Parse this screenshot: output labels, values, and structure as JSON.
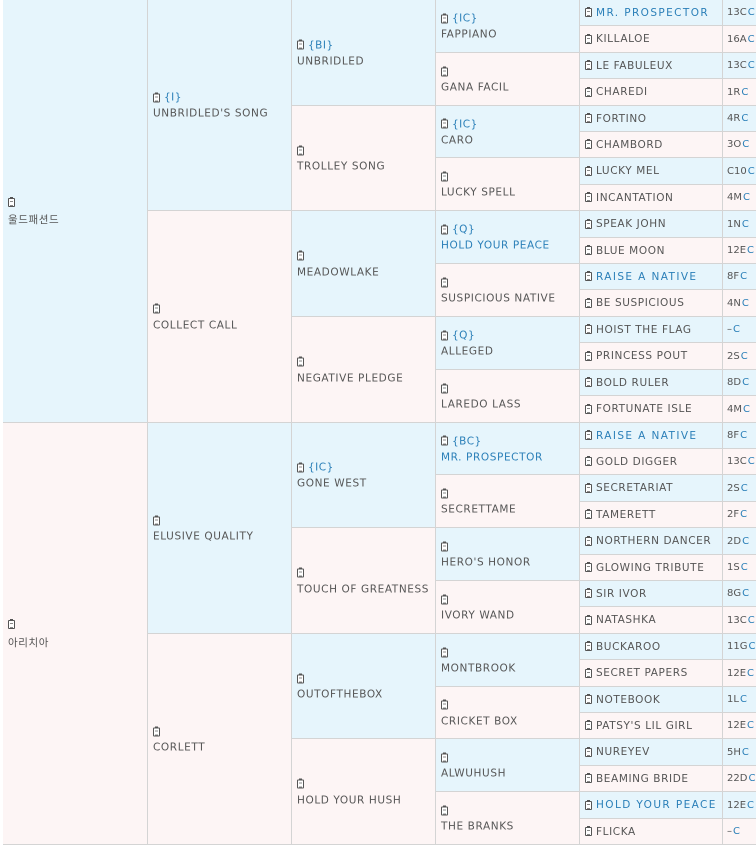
{
  "pedigree": [
    {
      "gen": 0,
      "name": "울드패션드",
      "code": "",
      "link": false,
      "bg": "blue"
    },
    {
      "gen": 1,
      "name": "UNBRIDLED'S SONG",
      "code": "{I}",
      "link": false,
      "bg": "blue"
    },
    {
      "gen": 2,
      "name": "UNBRIDLED",
      "code": "{BI}",
      "link": false,
      "bg": "blue"
    },
    {
      "gen": 3,
      "name": "FAPPIANO",
      "code": "{IC}",
      "link": false,
      "bg": "blue"
    },
    {
      "gen": 4,
      "name": "MR. PROSPECTOR",
      "link": true,
      "family": "13C",
      "bg": "blue"
    },
    {
      "gen": 4,
      "name": "KILLALOE",
      "link": false,
      "family": "16A",
      "bg": "pink"
    },
    {
      "gen": 3,
      "name": "GANA FACIL",
      "code": "",
      "link": false,
      "bg": "pink"
    },
    {
      "gen": 4,
      "name": "LE FABULEUX",
      "link": false,
      "family": "13C",
      "bg": "blue"
    },
    {
      "gen": 4,
      "name": "CHAREDI",
      "link": false,
      "family": "1R",
      "bg": "pink"
    },
    {
      "gen": 2,
      "name": "TROLLEY SONG",
      "code": "",
      "link": false,
      "bg": "pink"
    },
    {
      "gen": 3,
      "name": "CARO",
      "code": "{IC}",
      "link": false,
      "bg": "blue"
    },
    {
      "gen": 4,
      "name": "FORTINO",
      "link": false,
      "family": "4R",
      "bg": "blue"
    },
    {
      "gen": 4,
      "name": "CHAMBORD",
      "link": false,
      "family": "3O",
      "bg": "pink"
    },
    {
      "gen": 3,
      "name": "LUCKY SPELL",
      "code": "",
      "link": false,
      "bg": "pink"
    },
    {
      "gen": 4,
      "name": "LUCKY MEL",
      "link": false,
      "family": "C10",
      "bg": "blue"
    },
    {
      "gen": 4,
      "name": "INCANTATION",
      "link": false,
      "family": "4M",
      "bg": "pink"
    },
    {
      "gen": 1,
      "name": "COLLECT CALL",
      "code": "",
      "link": false,
      "bg": "pink"
    },
    {
      "gen": 2,
      "name": "MEADOWLAKE",
      "code": "",
      "link": false,
      "bg": "blue"
    },
    {
      "gen": 3,
      "name": "HOLD YOUR PEACE",
      "code": "{Q}",
      "link": true,
      "bg": "blue"
    },
    {
      "gen": 4,
      "name": "SPEAK JOHN",
      "link": false,
      "family": "1N",
      "bg": "blue"
    },
    {
      "gen": 4,
      "name": "BLUE MOON",
      "link": false,
      "family": "12E",
      "bg": "pink"
    },
    {
      "gen": 3,
      "name": "SUSPICIOUS NATIVE",
      "code": "",
      "link": false,
      "bg": "pink"
    },
    {
      "gen": 4,
      "name": "RAISE A NATIVE",
      "link": true,
      "family": "8F",
      "bg": "blue"
    },
    {
      "gen": 4,
      "name": "BE SUSPICIOUS",
      "link": false,
      "family": "4N",
      "bg": "pink"
    },
    {
      "gen": 2,
      "name": "NEGATIVE PLEDGE",
      "code": "",
      "link": false,
      "bg": "pink"
    },
    {
      "gen": 3,
      "name": "ALLEGED",
      "code": "{Q}",
      "link": false,
      "bg": "blue"
    },
    {
      "gen": 4,
      "name": "HOIST THE FLAG",
      "link": false,
      "family": "–",
      "bg": "blue"
    },
    {
      "gen": 4,
      "name": "PRINCESS POUT",
      "link": false,
      "family": "2S",
      "bg": "pink"
    },
    {
      "gen": 3,
      "name": "LAREDO LASS",
      "code": "",
      "link": false,
      "bg": "pink"
    },
    {
      "gen": 4,
      "name": "BOLD RULER",
      "link": false,
      "family": "8D",
      "bg": "blue"
    },
    {
      "gen": 4,
      "name": "FORTUNATE ISLE",
      "link": false,
      "family": "4M",
      "bg": "pink"
    },
    {
      "gen": 0,
      "name": "아리치아",
      "code": "",
      "link": false,
      "bg": "pink"
    },
    {
      "gen": 1,
      "name": "ELUSIVE QUALITY",
      "code": "",
      "link": false,
      "bg": "blue"
    },
    {
      "gen": 2,
      "name": "GONE WEST",
      "code": "{IC}",
      "link": false,
      "bg": "blue"
    },
    {
      "gen": 3,
      "name": "MR. PROSPECTOR",
      "code": "{BC}",
      "link": true,
      "bg": "blue"
    },
    {
      "gen": 4,
      "name": "RAISE A NATIVE",
      "link": true,
      "family": "8F",
      "bg": "blue"
    },
    {
      "gen": 4,
      "name": "GOLD DIGGER",
      "link": false,
      "family": "13C",
      "bg": "pink"
    },
    {
      "gen": 3,
      "name": "SECRETTAME",
      "code": "",
      "link": false,
      "bg": "pink"
    },
    {
      "gen": 4,
      "name": "SECRETARIAT",
      "link": false,
      "family": "2S",
      "bg": "blue"
    },
    {
      "gen": 4,
      "name": "TAMERETT",
      "link": false,
      "family": "2F",
      "bg": "pink"
    },
    {
      "gen": 2,
      "name": "TOUCH OF GREATNESS",
      "code": "",
      "link": false,
      "bg": "pink"
    },
    {
      "gen": 3,
      "name": "HERO'S HONOR",
      "code": "",
      "link": false,
      "bg": "blue"
    },
    {
      "gen": 4,
      "name": "NORTHERN DANCER",
      "link": false,
      "family": "2D",
      "bg": "blue"
    },
    {
      "gen": 4,
      "name": "GLOWING TRIBUTE",
      "link": false,
      "family": "1S",
      "bg": "pink"
    },
    {
      "gen": 3,
      "name": "IVORY WAND",
      "code": "",
      "link": false,
      "bg": "pink"
    },
    {
      "gen": 4,
      "name": "SIR IVOR",
      "link": false,
      "family": "8G",
      "bg": "blue"
    },
    {
      "gen": 4,
      "name": "NATASHKA",
      "link": false,
      "family": "13C",
      "bg": "pink"
    },
    {
      "gen": 1,
      "name": "CORLETT",
      "code": "",
      "link": false,
      "bg": "pink"
    },
    {
      "gen": 2,
      "name": "OUTOFTHEBOX",
      "code": "",
      "link": false,
      "bg": "blue"
    },
    {
      "gen": 3,
      "name": "MONTBROOK",
      "code": "",
      "link": false,
      "bg": "blue"
    },
    {
      "gen": 4,
      "name": "BUCKAROO",
      "link": false,
      "family": "11G",
      "bg": "blue"
    },
    {
      "gen": 4,
      "name": "SECRET PAPERS",
      "link": false,
      "family": "12E",
      "bg": "pink"
    },
    {
      "gen": 3,
      "name": "CRICKET BOX",
      "code": "",
      "link": false,
      "bg": "pink"
    },
    {
      "gen": 4,
      "name": "NOTEBOOK",
      "link": false,
      "family": "1L",
      "bg": "blue"
    },
    {
      "gen": 4,
      "name": "PATSY'S LIL GIRL",
      "link": false,
      "family": "12E",
      "bg": "pink"
    },
    {
      "gen": 2,
      "name": "HOLD YOUR HUSH",
      "code": "",
      "link": false,
      "bg": "pink"
    },
    {
      "gen": 3,
      "name": "ALWUHUSH",
      "code": "",
      "link": false,
      "bg": "blue"
    },
    {
      "gen": 4,
      "name": "NUREYEV",
      "link": false,
      "family": "5H",
      "bg": "blue"
    },
    {
      "gen": 4,
      "name": "BEAMING BRIDE",
      "link": false,
      "family": "22D",
      "bg": "pink"
    },
    {
      "gen": 3,
      "name": "THE BRANKS",
      "code": "",
      "link": false,
      "bg": "pink"
    },
    {
      "gen": 4,
      "name": "HOLD YOUR PEACE",
      "link": true,
      "family": "12E",
      "bg": "blue"
    },
    {
      "gen": 4,
      "name": "FLICKA",
      "link": false,
      "family": "–",
      "bg": "pink"
    }
  ],
  "family_link_glyph": "C",
  "icons": {
    "entry": "clipboard-icon"
  }
}
